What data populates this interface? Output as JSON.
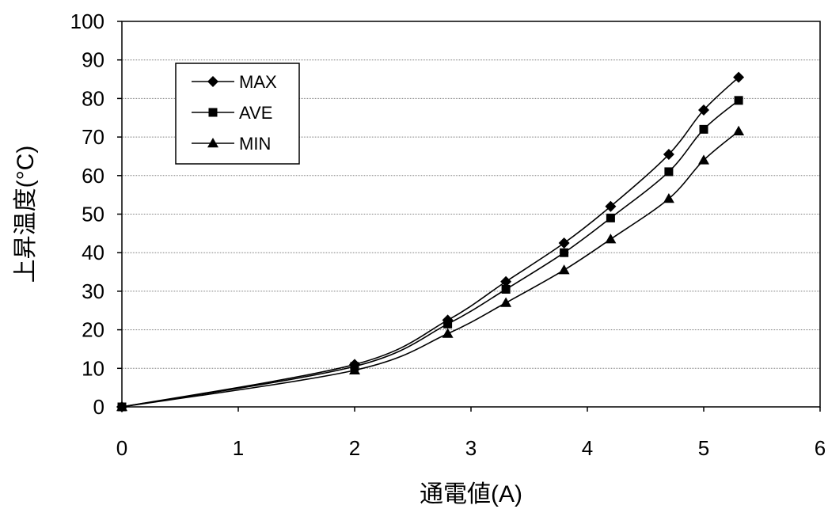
{
  "chart_data": {
    "type": "line",
    "xlabel": "通電値(A)",
    "ylabel": "上昇温度(°C)",
    "xlim": [
      0,
      6
    ],
    "ylim": [
      0,
      100
    ],
    "x_ticks": [
      "0",
      "1",
      "2",
      "3",
      "4",
      "5",
      "6"
    ],
    "y_ticks": [
      "0",
      "10",
      "20",
      "30",
      "40",
      "50",
      "60",
      "70",
      "80",
      "90",
      "100"
    ],
    "grid": "horizontal",
    "legend_position": "upper-left",
    "x": [
      0,
      2,
      2.8,
      3.3,
      3.8,
      4.2,
      4.7,
      5.0,
      5.3
    ],
    "series": [
      {
        "name": "MAX",
        "marker": "diamond",
        "values": [
          0,
          11,
          22.5,
          32.5,
          42.5,
          52,
          65.5,
          77,
          85.5
        ]
      },
      {
        "name": "AVE",
        "marker": "square",
        "values": [
          0,
          10.5,
          21.5,
          30.5,
          40,
          49,
          61,
          72,
          79.5
        ]
      },
      {
        "name": "MIN",
        "marker": "triangle",
        "values": [
          0,
          9.5,
          19,
          27,
          35.5,
          43.5,
          54,
          64,
          71.5
        ]
      }
    ],
    "colors": {
      "line": "#000000",
      "grid": "#808080",
      "frame": "#000000"
    }
  }
}
